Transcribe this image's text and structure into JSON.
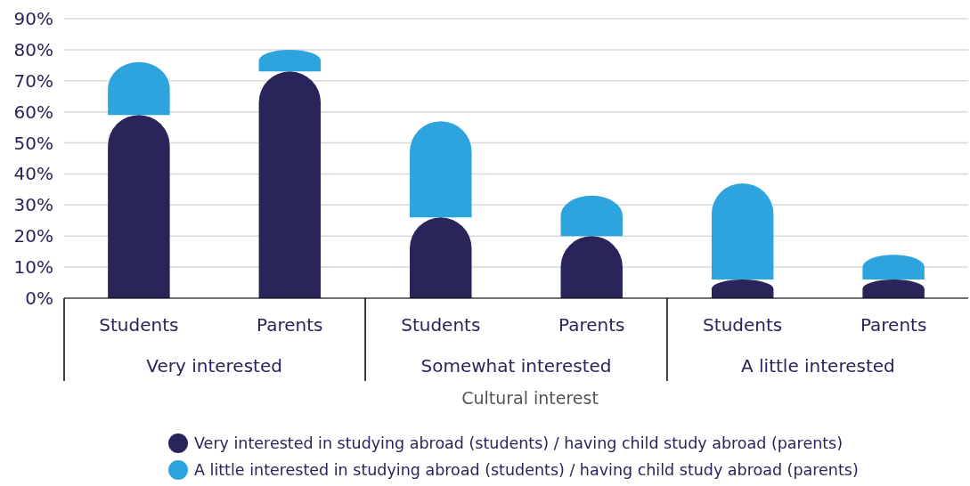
{
  "chart_data": {
    "type": "bar",
    "stacked": true,
    "categories": [
      "Students",
      "Parents",
      "Students",
      "Parents",
      "Students",
      "Parents"
    ],
    "series": [
      {
        "name": "Very interested in studying abroad (students) / having child study abroad (parents)",
        "color": "#29245a",
        "values": [
          59,
          73,
          26,
          20,
          6,
          6
        ]
      },
      {
        "name": "A little interested in studying abroad (students) / having child study abroad (parents)",
        "color": "#2ea4de",
        "values": [
          17,
          7,
          31,
          13,
          31,
          8
        ]
      }
    ],
    "xlabel": "Cultural interest",
    "annotations": [
      "Very interested",
      "Somewhat interested",
      "A little interested"
    ],
    "ylim": [
      0,
      90
    ],
    "yticks": [
      {
        "value": 0,
        "label": "0%"
      },
      {
        "value": 10,
        "label": "10%"
      },
      {
        "value": 20,
        "label": "20%"
      },
      {
        "value": 30,
        "label": "30%"
      },
      {
        "value": 40,
        "label": "40%"
      },
      {
        "value": 50,
        "label": "50%"
      },
      {
        "value": 60,
        "label": "60%"
      },
      {
        "value": 70,
        "label": "70%"
      },
      {
        "value": 80,
        "label": "80%"
      },
      {
        "value": 90,
        "label": "90%"
      }
    ],
    "grid": "y",
    "legend": "bottom"
  }
}
